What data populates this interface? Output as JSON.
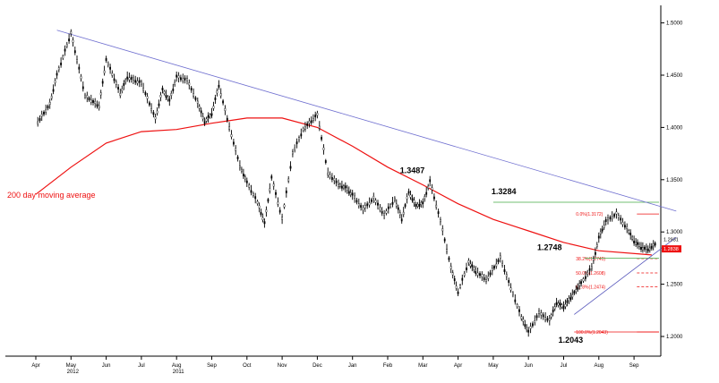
{
  "chart_data": {
    "type": "candlestick",
    "title": "",
    "xlabel": "",
    "ylabel": "",
    "ylim": [
      1.18,
      1.52
    ],
    "y_ticks": [
      "1.5000",
      "1.4500",
      "1.4000",
      "1.3500",
      "1.3000",
      "1.2500",
      "1.2000"
    ],
    "x_ticks": [
      "Apr",
      "May",
      "Jun",
      "Jul",
      "Aug",
      "Sep",
      "Oct",
      "Nov",
      "Dec",
      "Jan",
      "Feb",
      "Mar",
      "Apr",
      "May",
      "Jun",
      "Jul",
      "Aug",
      "Sep"
    ],
    "year_labels": [
      {
        "label": "2011",
        "after_tick": "Aug"
      },
      {
        "label": "2012",
        "after_tick": "May"
      }
    ],
    "grid": false,
    "moving_average": {
      "name": "200 day moving average",
      "color": "#ee1111",
      "x": [
        0,
        1,
        2,
        3,
        4,
        5,
        6,
        7,
        8,
        9,
        10,
        11,
        12,
        13,
        14,
        15,
        16,
        17.5
      ],
      "values": [
        1.336,
        1.362,
        1.385,
        1.396,
        1.398,
        1.404,
        1.409,
        1.409,
        1.4,
        1.382,
        1.362,
        1.345,
        1.327,
        1.312,
        1.301,
        1.29,
        1.282,
        1.278
      ]
    },
    "price": {
      "color": "#000000",
      "x": [
        0,
        0.4,
        0.6,
        1.0,
        1.4,
        1.8,
        2.0,
        2.4,
        2.6,
        3.0,
        3.4,
        3.6,
        3.8,
        4.0,
        4.3,
        4.6,
        4.8,
        5.0,
        5.2,
        5.5,
        5.8,
        6.0,
        6.3,
        6.5,
        6.7,
        7.0,
        7.3,
        7.6,
        8.0,
        8.3,
        8.6,
        8.8,
        9.0,
        9.3,
        9.6,
        9.9,
        10.2,
        10.4,
        10.6,
        10.8,
        11.0,
        11.2,
        11.5,
        11.8,
        12.0,
        12.3,
        12.5,
        12.8,
        13.2,
        13.5,
        13.8,
        14.0,
        14.3,
        14.6,
        14.8,
        15.0,
        15.2,
        15.3,
        15.5,
        15.8,
        16.0,
        16.2,
        16.5,
        16.8,
        17.0,
        17.2,
        17.4,
        17.6
      ],
      "values": [
        1.402,
        1.422,
        1.45,
        1.49,
        1.43,
        1.42,
        1.465,
        1.432,
        1.448,
        1.442,
        1.408,
        1.436,
        1.425,
        1.448,
        1.445,
        1.423,
        1.405,
        1.413,
        1.44,
        1.4,
        1.363,
        1.347,
        1.328,
        1.308,
        1.352,
        1.312,
        1.375,
        1.398,
        1.412,
        1.356,
        1.345,
        1.342,
        1.335,
        1.321,
        1.332,
        1.316,
        1.331,
        1.312,
        1.338,
        1.325,
        1.327,
        1.348,
        1.31,
        1.265,
        1.242,
        1.271,
        1.262,
        1.254,
        1.275,
        1.246,
        1.218,
        1.204,
        1.222,
        1.215,
        1.232,
        1.228,
        1.237,
        1.242,
        1.251,
        1.266,
        1.294,
        1.31,
        1.317,
        1.303,
        1.291,
        1.285,
        1.283,
        1.288
      ]
    },
    "trendlines": [
      {
        "color": "#7070d0",
        "x": [
          0.6,
          18.2
        ],
        "values": [
          1.493,
          1.32
        ]
      },
      {
        "color": "#5555bb",
        "x": [
          15.3,
          18.2
        ],
        "values": [
          1.221,
          1.295
        ]
      }
    ],
    "horizontal_levels": [
      {
        "value": 1.3284,
        "color": "#44aa44",
        "style": "solid",
        "x_start": 13.0
      },
      {
        "value": 1.2748,
        "color": "#44aa44",
        "style": "solid",
        "x_start": 15.6
      },
      {
        "value": 1.2043,
        "color": "#ee1111",
        "style": "solid",
        "x_start": 15.3
      }
    ],
    "fibonacci": [
      {
        "label": "0.0%(1.3172)",
        "value": 1.3172,
        "style": "solid"
      },
      {
        "label": "38.2%(1.2745)",
        "value": 1.2745,
        "style": "dashed"
      },
      {
        "label": "50.0%(1.2608)",
        "value": 1.2608,
        "style": "dashed"
      },
      {
        "label": "61.8%(1.2474)",
        "value": 1.2474,
        "style": "dashed"
      },
      {
        "label": "100.0%(1.2043)",
        "value": 1.2043,
        "style": "solid"
      }
    ],
    "annotations": [
      {
        "text": "1.3487",
        "x": 10.7,
        "value": 1.3487,
        "position": "above"
      },
      {
        "text": "1.3284",
        "x": 13.3,
        "value": 1.3284,
        "position": "above"
      },
      {
        "text": "1.2748",
        "x": 14.6,
        "value": 1.2748,
        "position": "above"
      },
      {
        "text": "1.2043",
        "x": 15.2,
        "value": 1.2043,
        "position": "below"
      }
    ],
    "right_axis_labels": [
      {
        "text": "1.2931",
        "value": 1.2931,
        "style": "plain"
      },
      {
        "text": "1.2838",
        "value": 1.2838,
        "style": "red-box"
      }
    ],
    "ma_label": "200 day moving average"
  }
}
